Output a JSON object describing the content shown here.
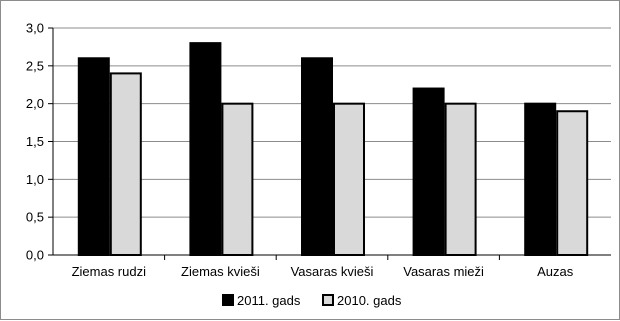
{
  "chart_data": {
    "type": "bar",
    "title": "",
    "xlabel": "",
    "ylabel": "",
    "categories": [
      "Ziemas rudzi",
      "Ziemas kvieši",
      "Vasaras kvieši",
      "Vasaras mieži",
      "Auzas"
    ],
    "series": [
      {
        "name": "2011. gads",
        "values": [
          2.6,
          2.8,
          2.6,
          2.2,
          2.0
        ],
        "color": "#000000"
      },
      {
        "name": "2010. gads",
        "values": [
          2.4,
          2.0,
          2.0,
          2.0,
          1.9
        ],
        "color": "#d9d9d9"
      }
    ],
    "ylim": [
      0,
      3.0
    ],
    "yticks": [
      "0,0",
      "0,5",
      "1,0",
      "1,5",
      "2,0",
      "2,5",
      "3,0"
    ],
    "grid": true,
    "legend_position": "bottom"
  }
}
